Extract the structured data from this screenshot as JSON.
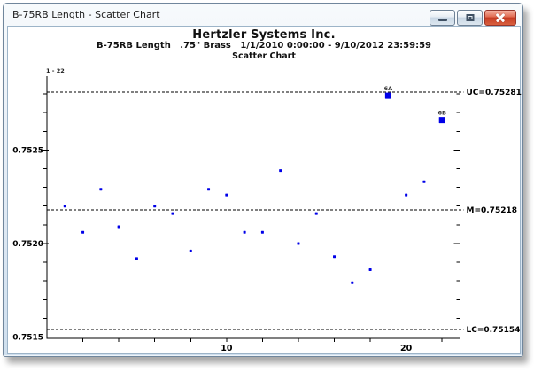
{
  "window": {
    "title": "B-75RB Length - Scatter Chart",
    "controls": [
      {
        "name": "minimize-button",
        "icon": "minimize-icon"
      },
      {
        "name": "restore-button",
        "icon": "restore-icon"
      },
      {
        "name": "close-button",
        "icon": "close-icon"
      }
    ]
  },
  "header": {
    "company": "Hertzler Systems Inc.",
    "info_line": "B-75RB Length   .75\" Brass   1/1/2010 0:00:00 - 9/10/2012 23:59:59",
    "chart_label": "Scatter Chart"
  },
  "chart_data": {
    "type": "scatter",
    "title": "Hertzler Systems Inc.",
    "subtitle": "B-75RB Length  .75\" Brass  1/1/2010 0:00:00 - 9/10/2012 23:59:59",
    "chart_type_label": "Scatter Chart",
    "range_label": "1 - 22",
    "x": [
      1,
      2,
      3,
      4,
      5,
      6,
      7,
      8,
      9,
      10,
      11,
      12,
      13,
      14,
      15,
      16,
      17,
      18,
      19,
      20,
      21,
      22
    ],
    "values": [
      0.7522,
      0.75206,
      0.75229,
      0.75209,
      0.75192,
      0.7522,
      0.75216,
      0.75196,
      0.75229,
      0.75226,
      0.75206,
      0.75206,
      0.75239,
      0.752,
      0.75216,
      0.75193,
      0.75179,
      0.75186,
      0.75279,
      0.75226,
      0.75233,
      0.75266
    ],
    "flagged_points": [
      {
        "x": 19,
        "label": "6A"
      },
      {
        "x": 22,
        "label": "6B"
      }
    ],
    "control_lines": [
      {
        "name": "UC",
        "value": 0.75281,
        "label": "UC=0.75281"
      },
      {
        "name": "M",
        "value": 0.75218,
        "label": "M=0.75218"
      },
      {
        "name": "LC",
        "value": 0.75154,
        "label": "LC=0.75154"
      }
    ],
    "xlim": [
      0,
      23
    ],
    "ylim": [
      0.751493,
      0.752895
    ],
    "x_ticks": [
      2,
      4,
      6,
      8,
      10,
      12,
      14,
      16,
      18,
      20,
      22
    ],
    "x_tick_labels": [
      {
        "value": 10,
        "label": "10"
      },
      {
        "value": 20,
        "label": "20"
      }
    ],
    "y_major_ticks": [
      {
        "value": 0.7515,
        "label": "0.7515"
      },
      {
        "value": 0.752,
        "label": "0.7520"
      },
      {
        "value": 0.7525,
        "label": "0.7525"
      }
    ],
    "y_minor_step": 0.0001,
    "grid": false,
    "legend": false,
    "point_color": "#0000e8",
    "axis_color": "#000000",
    "flag_label_color": "#333333"
  }
}
